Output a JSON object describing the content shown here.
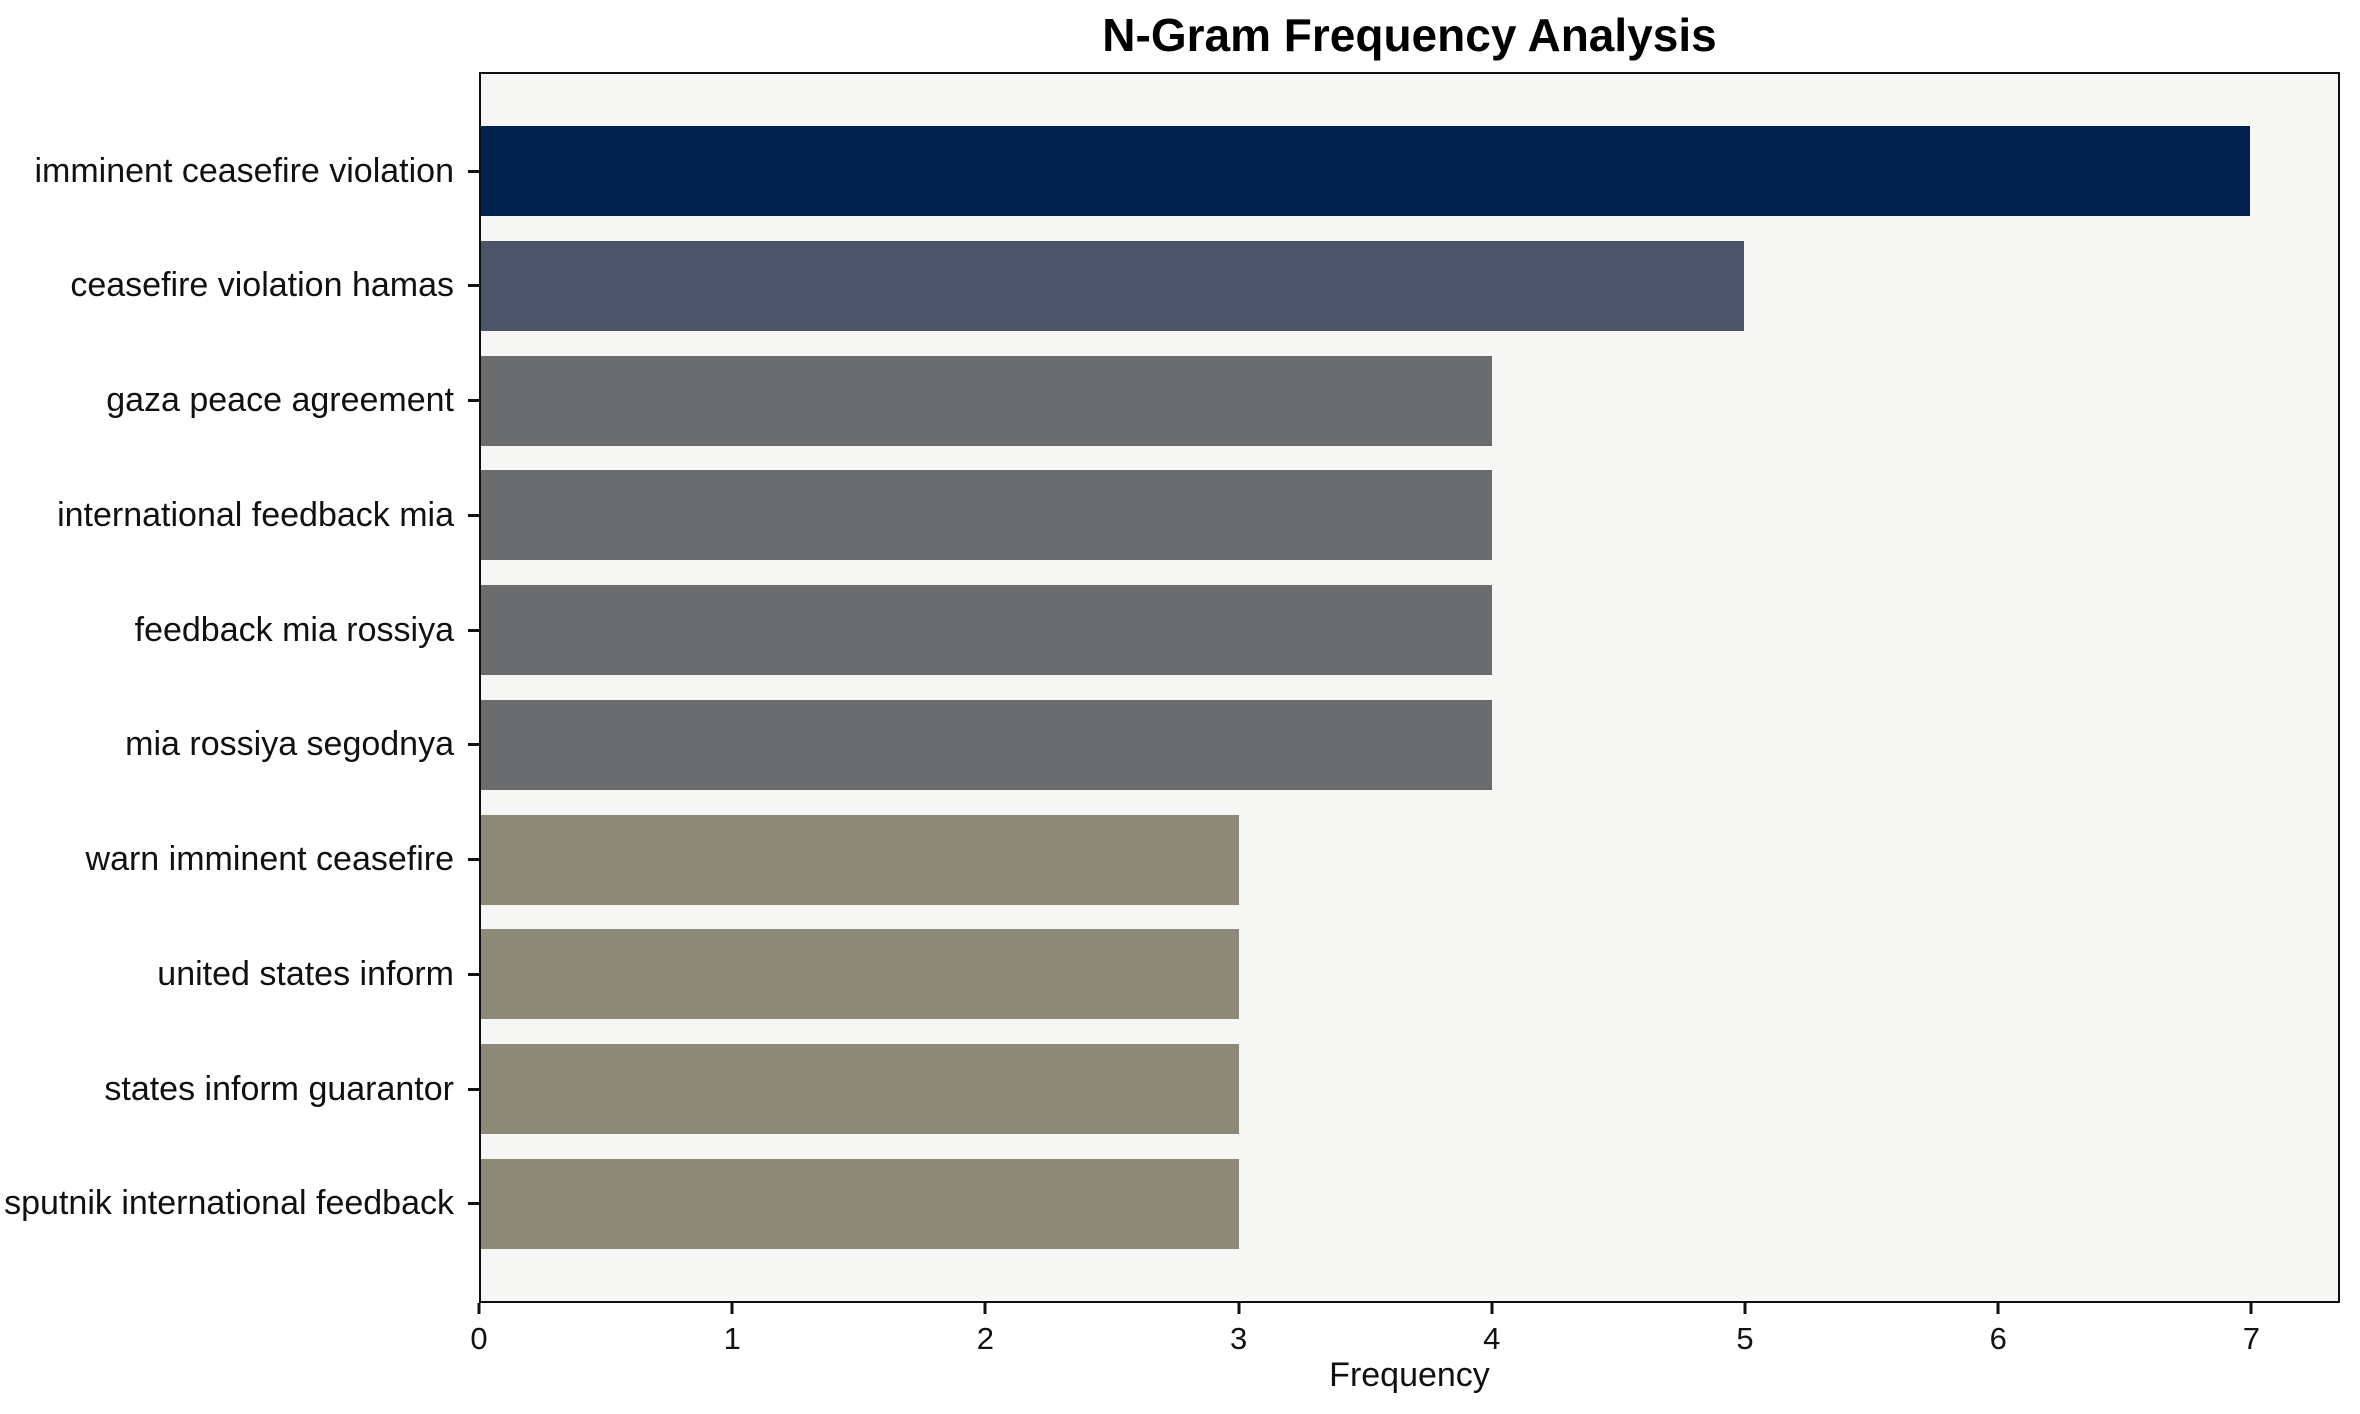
{
  "chart_data": {
    "type": "bar",
    "orientation": "horizontal",
    "title": "N-Gram Frequency Analysis",
    "xlabel": "Frequency",
    "ylabel": "",
    "categories": [
      "imminent ceasefire violation",
      "ceasefire violation hamas",
      "gaza peace agreement",
      "international feedback mia",
      "feedback mia rossiya",
      "mia rossiya segodnya",
      "warn imminent ceasefire",
      "united states inform",
      "states inform guarantor",
      "sputnik international feedback"
    ],
    "values": [
      7,
      5,
      4,
      4,
      4,
      4,
      3,
      3,
      3,
      3
    ],
    "bar_colors": [
      "#00214D",
      "#4C5467",
      "#6A6C6E",
      "#6A6C6E",
      "#6A6C6E",
      "#6A6C6E",
      "#8D8978",
      "#8D8978",
      "#8D8978",
      "#8D8978"
    ],
    "xticks": [
      0,
      1,
      2,
      3,
      4,
      5,
      6,
      7
    ],
    "xlim": [
      0,
      7.35
    ],
    "grid": false,
    "legend": "none",
    "plot_background": "#F6F6F5",
    "figure_background": "#FFFFFF",
    "spine_color": "#0E0E0E",
    "text_color": "#111111"
  }
}
